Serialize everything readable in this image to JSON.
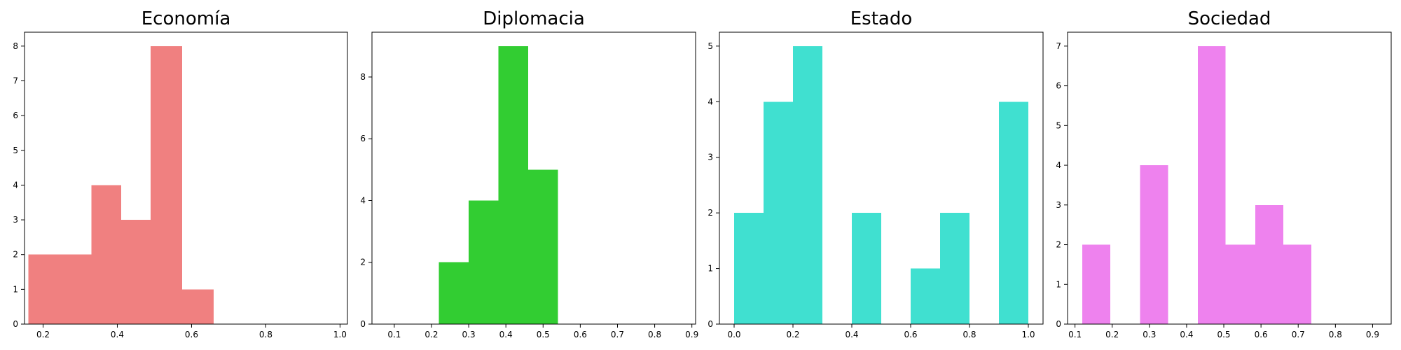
{
  "chart_data": [
    {
      "type": "bar",
      "title": "Economía",
      "color": "#f08080",
      "xlim": [
        0.15,
        1.02
      ],
      "ylim": [
        0,
        8.4
      ],
      "xticks": [
        0.2,
        0.4,
        0.6,
        0.8,
        1.0
      ],
      "xtick_labels": [
        "0.2",
        "0.4",
        "0.6",
        "0.8",
        "1.0"
      ],
      "yticks": [
        0,
        1,
        2,
        3,
        4,
        5,
        6,
        7,
        8
      ],
      "ytick_labels": [
        "0",
        "1",
        "2",
        "3",
        "4",
        "5",
        "6",
        "7",
        "8"
      ],
      "bins": [
        {
          "x0": 0.16,
          "x1": 0.245,
          "count": 2
        },
        {
          "x0": 0.245,
          "x1": 0.33,
          "count": 2
        },
        {
          "x0": 0.33,
          "x1": 0.41,
          "count": 4
        },
        {
          "x0": 0.41,
          "x1": 0.49,
          "count": 3
        },
        {
          "x0": 0.49,
          "x1": 0.575,
          "count": 8
        },
        {
          "x0": 0.575,
          "x1": 0.66,
          "count": 1
        }
      ]
    },
    {
      "type": "bar",
      "title": "Diplomacia",
      "color": "#32cd32",
      "xlim": [
        0.04,
        0.91
      ],
      "ylim": [
        0,
        9.45
      ],
      "xticks": [
        0.1,
        0.2,
        0.3,
        0.4,
        0.5,
        0.6,
        0.7,
        0.8,
        0.9
      ],
      "xtick_labels": [
        "0.1",
        "0.2",
        "0.3",
        "0.4",
        "0.5",
        "0.6",
        "0.7",
        "0.8",
        "0.9"
      ],
      "yticks": [
        0,
        2,
        4,
        6,
        8
      ],
      "ytick_labels": [
        "0",
        "2",
        "4",
        "6",
        "8"
      ],
      "bins": [
        {
          "x0": 0.22,
          "x1": 0.3,
          "count": 2
        },
        {
          "x0": 0.3,
          "x1": 0.38,
          "count": 4
        },
        {
          "x0": 0.38,
          "x1": 0.46,
          "count": 9
        },
        {
          "x0": 0.46,
          "x1": 0.54,
          "count": 5
        }
      ]
    },
    {
      "type": "bar",
      "title": "Estado",
      "color": "#40e0d0",
      "xlim": [
        -0.05,
        1.05
      ],
      "ylim": [
        0,
        5.25
      ],
      "xticks": [
        0.0,
        0.2,
        0.4,
        0.6,
        0.8,
        1.0
      ],
      "xtick_labels": [
        "0.0",
        "0.2",
        "0.4",
        "0.6",
        "0.8",
        "1.0"
      ],
      "yticks": [
        0,
        1,
        2,
        3,
        4,
        5
      ],
      "ytick_labels": [
        "0",
        "1",
        "2",
        "3",
        "4",
        "5"
      ],
      "bins": [
        {
          "x0": 0.0,
          "x1": 0.1,
          "count": 2
        },
        {
          "x0": 0.1,
          "x1": 0.2,
          "count": 4
        },
        {
          "x0": 0.2,
          "x1": 0.3,
          "count": 5
        },
        {
          "x0": 0.4,
          "x1": 0.5,
          "count": 2
        },
        {
          "x0": 0.6,
          "x1": 0.7,
          "count": 1
        },
        {
          "x0": 0.7,
          "x1": 0.8,
          "count": 2
        },
        {
          "x0": 0.9,
          "x1": 1.0,
          "count": 4
        }
      ]
    },
    {
      "type": "bar",
      "title": "Sociedad",
      "color": "#ee82ee",
      "xlim": [
        0.08,
        0.95
      ],
      "ylim": [
        0,
        7.35
      ],
      "xticks": [
        0.1,
        0.2,
        0.3,
        0.4,
        0.5,
        0.6,
        0.7,
        0.8,
        0.9
      ],
      "xtick_labels": [
        "0.1",
        "0.2",
        "0.3",
        "0.4",
        "0.5",
        "0.6",
        "0.7",
        "0.8",
        "0.9"
      ],
      "yticks": [
        0,
        1,
        2,
        3,
        4,
        5,
        6,
        7
      ],
      "ytick_labels": [
        "0",
        "1",
        "2",
        "3",
        "4",
        "5",
        "6",
        "7"
      ],
      "bins": [
        {
          "x0": 0.12,
          "x1": 0.195,
          "count": 2
        },
        {
          "x0": 0.275,
          "x1": 0.35,
          "count": 4
        },
        {
          "x0": 0.43,
          "x1": 0.505,
          "count": 7
        },
        {
          "x0": 0.505,
          "x1": 0.585,
          "count": 2
        },
        {
          "x0": 0.585,
          "x1": 0.66,
          "count": 3
        },
        {
          "x0": 0.66,
          "x1": 0.735,
          "count": 2
        }
      ]
    }
  ]
}
